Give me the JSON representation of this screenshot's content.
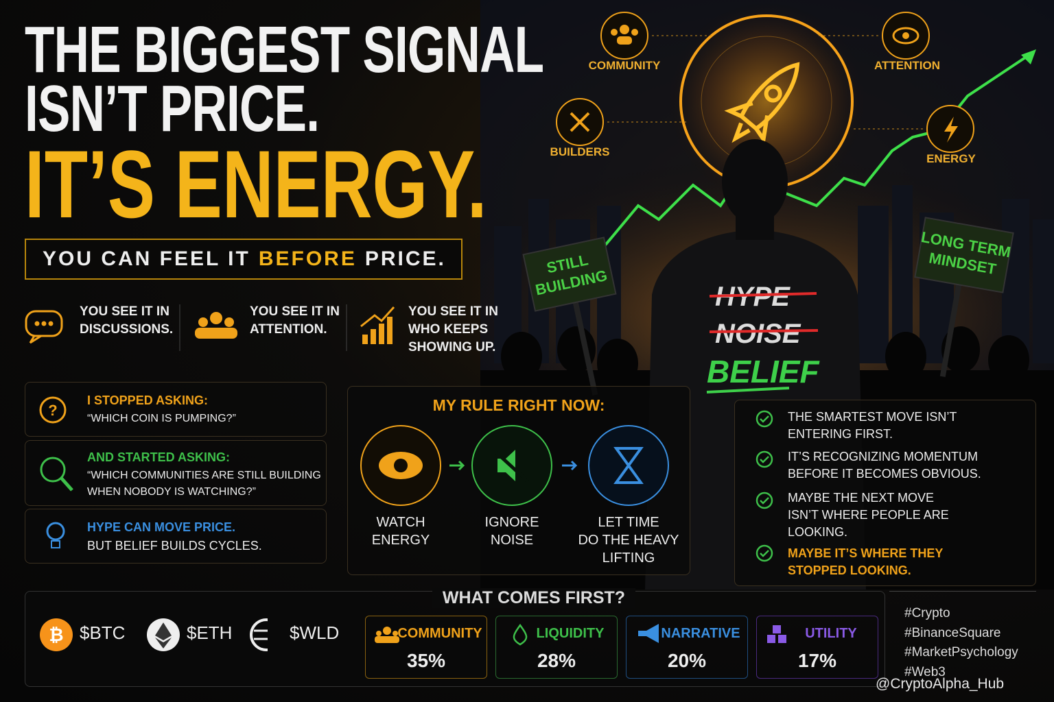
{
  "headline": {
    "line1": "THE BIGGEST SIGNAL",
    "line2": "ISN’T PRICE.",
    "line3": "IT’S ENERGY."
  },
  "tagline": {
    "start": "YOU CAN FEEL IT",
    "highlight": "BEFORE",
    "end": "PRICE."
  },
  "signals": [
    {
      "lines": [
        "YOU SEE IT IN",
        "DISCUSSIONS."
      ]
    },
    {
      "lines": [
        "YOU SEE IT IN",
        "ATTENTION."
      ]
    },
    {
      "lines": [
        "YOU SEE IT IN",
        "WHO KEEPS",
        "SHOWING UP."
      ]
    }
  ],
  "hero": {
    "icons": [
      {
        "label": "COMMUNITY"
      },
      {
        "label": "ATTENTION"
      },
      {
        "label": "BUILDERS"
      },
      {
        "label": "ENERGY"
      }
    ],
    "signs": [
      {
        "lines": [
          "STILL",
          "BUILDING"
        ]
      },
      {
        "lines": [
          "LONG TERM",
          "MINDSET"
        ]
      }
    ],
    "hoodie": [
      "HYPE",
      "NOISE",
      "BELIEF"
    ]
  },
  "questions": [
    {
      "heading": "I STOPPED ASKING:",
      "lines": [
        "“WHICH COIN IS PUMPING?”"
      ]
    },
    {
      "heading": "AND STARTED ASKING:",
      "lines": [
        "“WHICH COMMUNITIES ARE STILL BUILDING",
        "WHEN NOBODY IS WATCHING?”"
      ]
    },
    {
      "heading": "HYPE CAN MOVE PRICE.",
      "lines": [
        "BUT BELIEF BUILDS CYCLES."
      ]
    }
  ],
  "rule": {
    "title": "MY RULE RIGHT NOW:",
    "steps": [
      {
        "lines": [
          "WATCH",
          "ENERGY"
        ]
      },
      {
        "lines": [
          "IGNORE",
          "NOISE"
        ]
      },
      {
        "lines": [
          "LET TIME",
          "DO THE HEAVY",
          "LIFTING"
        ]
      }
    ]
  },
  "insights": [
    {
      "lines": [
        "THE SMARTEST MOVE ISN’T",
        "ENTERING FIRST."
      ]
    },
    {
      "lines": [
        "IT’S RECOGNIZING MOMENTUM",
        "BEFORE IT BECOMES OBVIOUS."
      ]
    },
    {
      "lines": [
        "MAYBE THE NEXT MOVE",
        "ISN’T WHERE PEOPLE ARE",
        "LOOKING."
      ]
    },
    {
      "lines": [
        "MAYBE IT’S WHERE THEY",
        "STOPPED LOOKING."
      ]
    }
  ],
  "coins": [
    "$BTC",
    "$ETH",
    "$WLD"
  ],
  "first": {
    "title": "WHAT COMES FIRST?",
    "items": [
      {
        "name": "COMMUNITY",
        "value": "35%"
      },
      {
        "name": "LIQUIDITY",
        "value": "28%"
      },
      {
        "name": "NARRATIVE",
        "value": "20%"
      },
      {
        "name": "UTILITY",
        "value": "17%"
      }
    ]
  },
  "hashtags": [
    "#Crypto",
    "#BinanceSquare",
    "#MarketPsychology",
    "#Web3"
  ],
  "watermark": "@CryptoAlpha_Hub"
}
